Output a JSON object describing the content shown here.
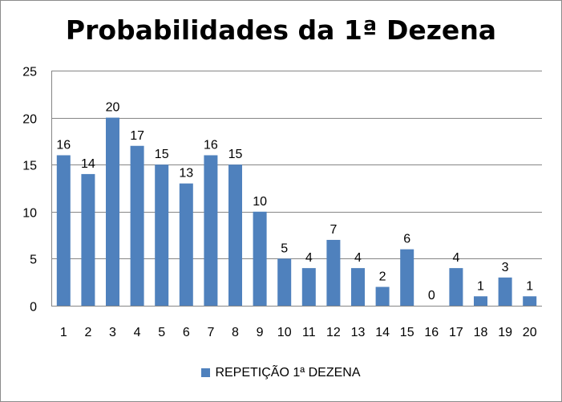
{
  "chart_data": {
    "type": "bar",
    "title": "Probabilidades da 1ª Dezena",
    "categories": [
      "1",
      "2",
      "3",
      "4",
      "5",
      "6",
      "7",
      "8",
      "9",
      "10",
      "11",
      "12",
      "13",
      "14",
      "15",
      "16",
      "17",
      "18",
      "19",
      "20"
    ],
    "series": [
      {
        "name": "REPETIÇÃO 1ª DEZENA",
        "color": "#4f81bd",
        "values": [
          16,
          14,
          20,
          17,
          15,
          13,
          16,
          15,
          10,
          5,
          4,
          7,
          4,
          2,
          6,
          0,
          4,
          1,
          3,
          1
        ]
      }
    ],
    "ylim": [
      0,
      25
    ],
    "yticks": [
      "0",
      "5",
      "10",
      "15",
      "20",
      "25"
    ],
    "grid": true,
    "legend_position": "bottom",
    "data_labels": true
  }
}
